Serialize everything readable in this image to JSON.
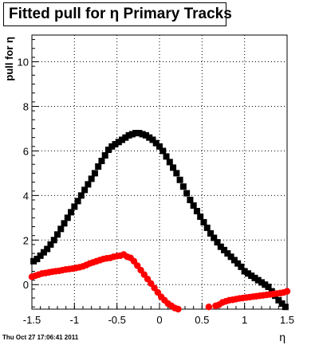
{
  "chart_data": {
    "type": "scatter",
    "title": "Fitted pull for η  Primary Tracks",
    "xlabel": "η",
    "ylabel": "pull for η",
    "xlim": [
      -1.5,
      1.5
    ],
    "ylim": [
      -1.1,
      11.2
    ],
    "grid": true,
    "x_tick_labels": [
      "-1.5",
      "-1",
      "-0.5",
      "0",
      "0.5",
      "1",
      "1.5"
    ],
    "y_tick_labels": [
      "0",
      "2",
      "4",
      "6",
      "8",
      "10"
    ],
    "x_tick_values": [
      -1.5,
      -1,
      -0.5,
      0,
      0.5,
      1,
      1.5
    ],
    "y_tick_values": [
      0,
      2,
      4,
      6,
      8,
      10
    ],
    "colors": {
      "black_series": "#000000",
      "red_series": "#ff0000"
    },
    "series": [
      {
        "marker": "square",
        "color": "#000000",
        "x": [
          -1.48,
          -1.44,
          -1.4,
          -1.36,
          -1.32,
          -1.28,
          -1.24,
          -1.2,
          -1.16,
          -1.12,
          -1.08,
          -1.04,
          -1.0,
          -0.96,
          -0.92,
          -0.88,
          -0.84,
          -0.8,
          -0.76,
          -0.72,
          -0.68,
          -0.64,
          -0.6,
          -0.56,
          -0.52,
          -0.48,
          -0.44,
          -0.4,
          -0.36,
          -0.32,
          -0.28,
          -0.24,
          -0.2,
          -0.16,
          -0.12,
          -0.08,
          -0.04,
          0.0,
          0.04,
          0.08,
          0.12,
          0.16,
          0.2,
          0.24,
          0.28,
          0.32,
          0.36,
          0.4,
          0.44,
          0.48,
          0.52,
          0.56,
          0.6,
          0.64,
          0.68,
          0.72,
          0.76,
          0.8,
          0.84,
          0.88,
          0.92,
          0.96,
          1.0,
          1.04,
          1.08,
          1.12,
          1.16,
          1.2,
          1.24,
          1.28,
          1.32,
          1.36,
          1.4,
          1.44,
          1.48
        ],
        "y": [
          1.05,
          1.15,
          1.3,
          1.45,
          1.6,
          1.8,
          2.0,
          2.25,
          2.5,
          2.75,
          3.0,
          3.25,
          3.5,
          3.75,
          4.0,
          4.25,
          4.5,
          4.75,
          5.0,
          5.3,
          5.55,
          5.8,
          6.05,
          6.2,
          6.3,
          6.4,
          6.5,
          6.6,
          6.7,
          6.75,
          6.8,
          6.8,
          6.75,
          6.7,
          6.6,
          6.5,
          6.35,
          6.2,
          6.0,
          5.75,
          5.5,
          5.25,
          5.0,
          4.7,
          4.4,
          4.1,
          3.8,
          3.55,
          3.3,
          3.05,
          2.8,
          2.55,
          2.3,
          2.1,
          1.9,
          1.7,
          1.55,
          1.4,
          1.25,
          1.1,
          0.95,
          0.8,
          0.6,
          0.5,
          0.4,
          0.3,
          0.2,
          0.1,
          0.0,
          -0.1,
          -0.3,
          -0.5,
          -0.7,
          -0.85,
          -1.0
        ]
      },
      {
        "marker": "circle",
        "color": "#ff0000",
        "x": [
          -1.5,
          -1.46,
          -1.42,
          -1.38,
          -1.34,
          -1.3,
          -1.26,
          -1.22,
          -1.18,
          -1.14,
          -1.1,
          -1.06,
          -1.02,
          -0.98,
          -0.94,
          -0.9,
          -0.86,
          -0.82,
          -0.78,
          -0.74,
          -0.7,
          -0.66,
          -0.62,
          -0.58,
          -0.54,
          -0.5,
          -0.46,
          -0.42,
          -0.38,
          -0.34,
          -0.3,
          -0.26,
          -0.22,
          -0.18,
          -0.14,
          -0.1,
          -0.06,
          -0.02,
          0.02,
          0.06,
          0.1,
          0.14,
          0.18,
          0.22,
          0.58,
          0.66,
          0.7,
          0.74,
          0.78,
          0.82,
          0.86,
          0.9,
          0.94,
          0.98,
          1.02,
          1.06,
          1.1,
          1.14,
          1.18,
          1.22,
          1.26,
          1.3,
          1.34,
          1.38,
          1.42,
          1.46,
          1.5
        ],
        "y": [
          0.35,
          0.4,
          0.45,
          0.5,
          0.52,
          0.55,
          0.58,
          0.6,
          0.62,
          0.65,
          0.68,
          0.7,
          0.72,
          0.75,
          0.78,
          0.82,
          0.88,
          0.95,
          1.0,
          1.05,
          1.1,
          1.15,
          1.18,
          1.2,
          1.25,
          1.28,
          1.3,
          1.35,
          1.25,
          1.2,
          1.05,
          0.85,
          0.65,
          0.45,
          0.25,
          0.05,
          -0.15,
          -0.35,
          -0.55,
          -0.7,
          -0.85,
          -0.95,
          -1.05,
          -1.1,
          -1.0,
          -0.95,
          -0.9,
          -0.8,
          -0.75,
          -0.7,
          -0.68,
          -0.65,
          -0.62,
          -0.6,
          -0.58,
          -0.56,
          -0.54,
          -0.52,
          -0.5,
          -0.48,
          -0.46,
          -0.44,
          -0.42,
          -0.4,
          -0.38,
          -0.35,
          -0.3
        ]
      }
    ]
  },
  "footer": {
    "timestamp": "Thu Oct 27 17:06:41 2011"
  }
}
